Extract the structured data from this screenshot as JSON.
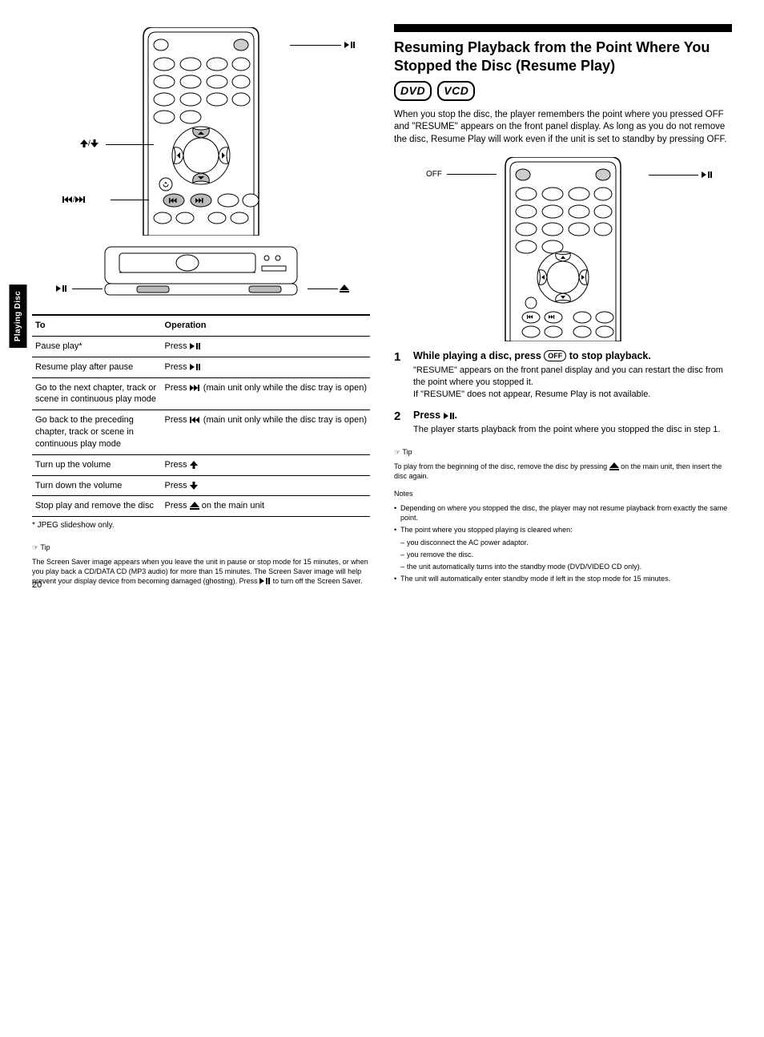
{
  "page_number": "20",
  "side_tab": "Playing Disc",
  "left": {
    "remote_callouts": {
      "play_pause": "",
      "up_down": "/",
      "prev_next": "/"
    },
    "unit_callouts": {
      "play_pause_left": "",
      "eject_right": ""
    },
    "table": {
      "headers": [
        "To",
        "Operation"
      ],
      "rows": [
        {
          "to": "Pause play*",
          "op_prefix": "Press ",
          "icon": "play-pause",
          "op_suffix": ""
        },
        {
          "to": "Resume play after pause",
          "op_prefix": "Press ",
          "icon": "play-pause",
          "op_suffix": ""
        },
        {
          "to": "Go to the next chapter, track or scene in continuous play mode",
          "op_prefix": "Press ",
          "icon": "next",
          "op_suffix": " (main unit only while the disc tray is open)"
        },
        {
          "to": "Go back to the preceding chapter, track or scene in continuous play mode",
          "op_prefix": "Press ",
          "icon": "prev",
          "op_suffix": " (main unit only while the disc tray is open)"
        },
        {
          "to": "Turn up the volume",
          "op_prefix": "Press ",
          "icon": "up",
          "op_suffix": ""
        },
        {
          "to": "Turn down the volume",
          "op_prefix": "Press ",
          "icon": "down",
          "op_suffix": ""
        },
        {
          "to": "Stop play and remove the disc",
          "op_prefix": "Press ",
          "icon": "eject",
          "op_suffix": " on the main unit"
        }
      ],
      "footnote": "* JPEG slideshow only."
    },
    "tip_title": "Tip",
    "tip_body": "The Screen Saver image appears when you leave the unit in pause or stop mode for 15 minutes, or when you play back a CD/DATA CD (MP3 audio) for more than 15 minutes. The Screen Saver image will help prevent your display device from becoming damaged (ghosting). Press ",
    "tip_body_suffix": " to turn off the Screen Saver."
  },
  "right": {
    "heading": "Resuming Playback from the Point Where You Stopped the Disc (Resume Play)",
    "badges": [
      "DVD",
      "VCD"
    ],
    "intro": "When you stop the disc, the player remembers the point where you pressed OFF and \"RESUME\" appears on the front panel display. As long as you do not remove the disc, Resume Play will work even if the unit is set to standby by pressing OFF.",
    "remote_callouts": {
      "off": "OFF",
      "play_pause": ""
    },
    "steps": [
      {
        "num": "1",
        "main_prefix": "While playing a disc, press ",
        "main_off_label": "OFF",
        "main_suffix": " to stop playback.",
        "detail": "\"RESUME\" appears on the front panel display and you can restart the disc from the point where you stopped it.\nIf \"RESUME\" does not appear, Resume Play is not available."
      },
      {
        "num": "2",
        "main_prefix": "Press ",
        "main_icon": "play-pause",
        "main_suffix": ".",
        "detail": "The player starts playback from the point where you stopped the disc in step 1."
      }
    ],
    "tip_title": "Tip",
    "tip_body_prefix": "To play from the beginning of the disc, remove the disc by pressing ",
    "tip_body_icon": "eject",
    "tip_body_suffix": " on the main unit, then insert the disc again.",
    "notes_title": "Notes",
    "notes": [
      "Depending on where you stopped the disc, the player may not resume playback from exactly the same point.",
      {
        "text": "The point where you stopped playing is cleared when:",
        "sub": [
          "you disconnect the AC power adaptor.",
          "you remove the disc.",
          "the unit automatically turns into the standby mode (DVD/VIDEO CD only)."
        ]
      },
      "The unit will automatically enter standby mode if left in the stop mode for 15 minutes."
    ]
  },
  "colors": {
    "text": "#000000",
    "background": "#ffffff",
    "rule": "#000000"
  }
}
